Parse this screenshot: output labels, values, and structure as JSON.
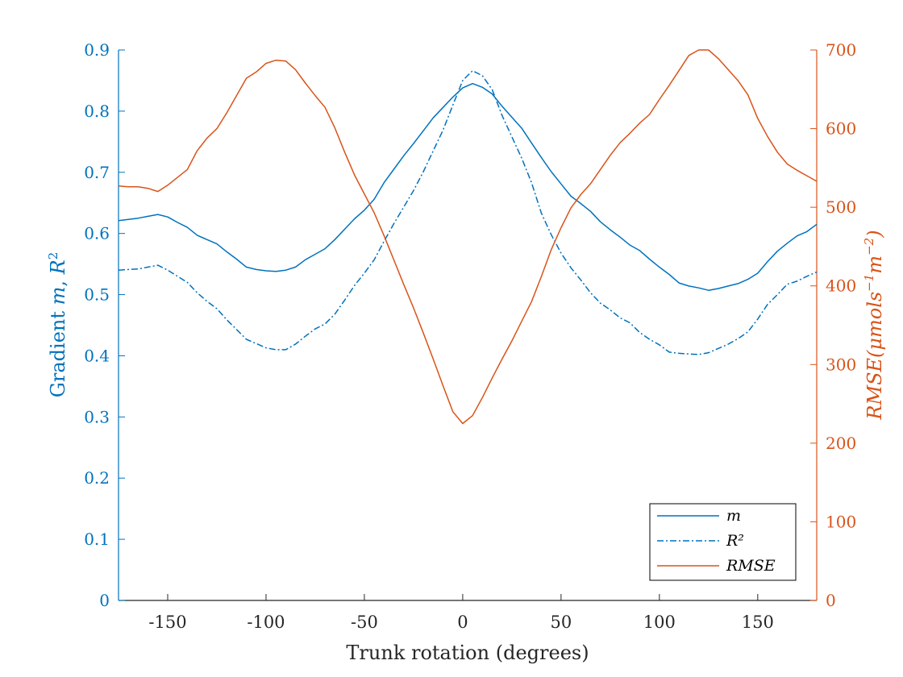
{
  "chart_data": {
    "type": "line",
    "xlabel": "Trunk rotation (degrees)",
    "ylabel_left": "Gradient m, R²",
    "ylabel_left_parts": {
      "prefix": "Gradient ",
      "m": "m",
      "sep": ", ",
      "R": "R",
      "sup": "2"
    },
    "ylabel_right": "RMSE(μmols⁻¹m⁻²)",
    "ylabel_right_parts": {
      "base": "RMSE(μmols",
      "sup1": "−1",
      "mid": "m",
      "sup2": "−2",
      "end": ")"
    },
    "xlim": [
      -175,
      180
    ],
    "ylim_left": [
      0,
      0.9
    ],
    "ylim_right": [
      0,
      700
    ],
    "xticks": [
      -150,
      -100,
      -50,
      0,
      50,
      100,
      150
    ],
    "xtick_labels": [
      "-150",
      "-100",
      "-50",
      "0",
      "50",
      "100",
      "150"
    ],
    "yticks_left": [
      0,
      0.1,
      0.2,
      0.3,
      0.4,
      0.5,
      0.6,
      0.7,
      0.8,
      0.9
    ],
    "ytick_labels_left": [
      "0",
      "0.1",
      "0.2",
      "0.3",
      "0.4",
      "0.5",
      "0.6",
      "0.7",
      "0.8",
      "0.9"
    ],
    "yticks_right": [
      0,
      100,
      200,
      300,
      400,
      500,
      600,
      700
    ],
    "ytick_labels_right": [
      "0",
      "100",
      "200",
      "300",
      "400",
      "500",
      "600",
      "700"
    ],
    "grid": false,
    "legend_position": "bottom-right",
    "colors": {
      "m": "#0072bd",
      "R2": "#0072bd",
      "RMSE": "#d95319",
      "axis_left": "#0072bd",
      "axis_right": "#d95319",
      "axis_x": "#262626"
    },
    "x": [
      -175,
      -170,
      -165,
      -160,
      -155,
      -150,
      -145,
      -140,
      -135,
      -130,
      -125,
      -120,
      -115,
      -110,
      -105,
      -100,
      -95,
      -90,
      -85,
      -80,
      -75,
      -70,
      -65,
      -60,
      -55,
      -50,
      -45,
      -40,
      -35,
      -30,
      -25,
      -20,
      -15,
      -10,
      -5,
      0,
      5,
      10,
      15,
      20,
      25,
      30,
      35,
      40,
      45,
      50,
      55,
      60,
      65,
      70,
      75,
      80,
      85,
      90,
      95,
      100,
      105,
      110,
      115,
      120,
      125,
      130,
      135,
      140,
      145,
      150,
      155,
      160,
      165,
      170,
      175,
      180
    ],
    "series": [
      {
        "name": "m",
        "axis": "left",
        "style": "solid",
        "values": [
          0.621,
          0.623,
          0.625,
          0.628,
          0.631,
          0.627,
          0.618,
          0.61,
          0.597,
          0.59,
          0.583,
          0.57,
          0.558,
          0.545,
          0.541,
          0.539,
          0.538,
          0.54,
          0.545,
          0.557,
          0.566,
          0.575,
          0.59,
          0.607,
          0.624,
          0.638,
          0.656,
          0.683,
          0.705,
          0.727,
          0.747,
          0.768,
          0.789,
          0.806,
          0.823,
          0.838,
          0.845,
          0.839,
          0.828,
          0.808,
          0.79,
          0.772,
          0.748,
          0.724,
          0.701,
          0.681,
          0.661,
          0.649,
          0.636,
          0.619,
          0.606,
          0.594,
          0.581,
          0.572,
          0.558,
          0.545,
          0.533,
          0.519,
          0.514,
          0.511,
          0.507,
          0.51,
          0.514,
          0.518,
          0.525,
          0.535,
          0.554,
          0.571,
          0.584,
          0.596,
          0.603,
          0.615
        ]
      },
      {
        "name": "R²",
        "axis": "left",
        "style": "dashdot",
        "values": [
          0.54,
          0.541,
          0.542,
          0.545,
          0.548,
          0.54,
          0.53,
          0.52,
          0.503,
          0.489,
          0.477,
          0.459,
          0.443,
          0.427,
          0.42,
          0.413,
          0.41,
          0.41,
          0.419,
          0.432,
          0.444,
          0.452,
          0.468,
          0.491,
          0.515,
          0.535,
          0.557,
          0.587,
          0.616,
          0.643,
          0.67,
          0.701,
          0.735,
          0.769,
          0.81,
          0.85,
          0.866,
          0.858,
          0.835,
          0.793,
          0.758,
          0.723,
          0.683,
          0.633,
          0.598,
          0.568,
          0.544,
          0.524,
          0.503,
          0.486,
          0.475,
          0.462,
          0.454,
          0.438,
          0.427,
          0.418,
          0.406,
          0.404,
          0.403,
          0.402,
          0.405,
          0.412,
          0.419,
          0.428,
          0.439,
          0.46,
          0.484,
          0.5,
          0.517,
          0.522,
          0.53,
          0.537
        ]
      },
      {
        "name": "RMSE",
        "axis": "right",
        "style": "solid",
        "values": [
          527,
          526,
          526,
          524,
          520,
          528,
          538,
          548,
          572,
          588,
          600,
          620,
          642,
          664,
          672,
          683,
          687,
          686,
          675,
          658,
          642,
          627,
          601,
          570,
          541,
          517,
          493,
          464,
          433,
          402,
          372,
          340,
          307,
          273,
          240,
          225,
          235,
          258,
          283,
          307,
          330,
          355,
          380,
          412,
          446,
          474,
          499,
          516,
          530,
          548,
          566,
          582,
          594,
          607,
          618,
          637,
          655,
          674,
          693,
          700,
          700,
          689,
          675,
          661,
          643,
          613,
          590,
          570,
          555,
          547,
          540,
          533
        ]
      }
    ]
  }
}
